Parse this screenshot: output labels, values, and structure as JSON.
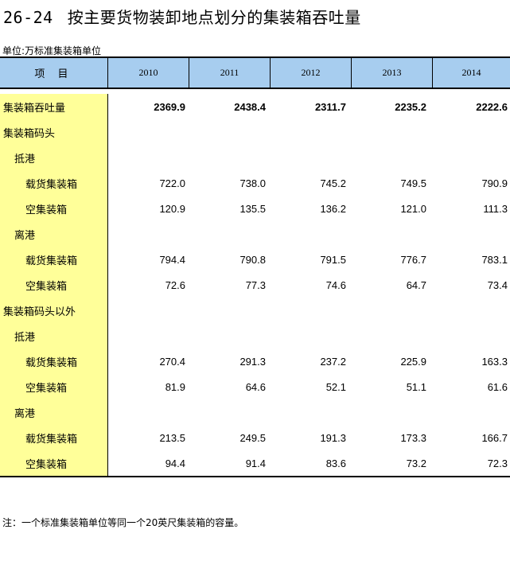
{
  "title": {
    "number": "26-24",
    "text": "按主要货物装卸地点划分的集装箱吞吐量"
  },
  "unit": "单位:万标准集装箱单位",
  "header": {
    "item": "项  目",
    "years": [
      "2010",
      "2011",
      "2012",
      "2013",
      "2014"
    ]
  },
  "rows": [
    {
      "label": "集装箱吞吐量",
      "level": 0,
      "bold": true,
      "values": [
        "2369.9",
        "2438.4",
        "2311.7",
        "2235.2",
        "2222.6"
      ]
    },
    {
      "label": "集装箱码头",
      "level": 0,
      "bold": false,
      "values": [
        "",
        "",
        "",
        "",
        ""
      ]
    },
    {
      "label": "抵港",
      "level": 1,
      "bold": false,
      "values": [
        "",
        "",
        "",
        "",
        ""
      ]
    },
    {
      "label": "载货集装箱",
      "level": 2,
      "bold": false,
      "values": [
        "722.0",
        "738.0",
        "745.2",
        "749.5",
        "790.9"
      ]
    },
    {
      "label": "空集装箱",
      "level": 2,
      "bold": false,
      "values": [
        "120.9",
        "135.5",
        "136.2",
        "121.0",
        "111.3"
      ]
    },
    {
      "label": "离港",
      "level": 1,
      "bold": false,
      "values": [
        "",
        "",
        "",
        "",
        ""
      ]
    },
    {
      "label": "载货集装箱",
      "level": 2,
      "bold": false,
      "values": [
        "794.4",
        "790.8",
        "791.5",
        "776.7",
        "783.1"
      ]
    },
    {
      "label": "空集装箱",
      "level": 2,
      "bold": false,
      "values": [
        "72.6",
        "77.3",
        "74.6",
        "64.7",
        "73.4"
      ]
    },
    {
      "label": "集装箱码头以外",
      "level": 0,
      "bold": false,
      "values": [
        "",
        "",
        "",
        "",
        ""
      ]
    },
    {
      "label": "抵港",
      "level": 1,
      "bold": false,
      "values": [
        "",
        "",
        "",
        "",
        ""
      ]
    },
    {
      "label": "载货集装箱",
      "level": 2,
      "bold": false,
      "values": [
        "270.4",
        "291.3",
        "237.2",
        "225.9",
        "163.3"
      ]
    },
    {
      "label": "空集装箱",
      "level": 2,
      "bold": false,
      "values": [
        "81.9",
        "64.6",
        "52.1",
        "51.1",
        "61.6"
      ]
    },
    {
      "label": "离港",
      "level": 1,
      "bold": false,
      "values": [
        "",
        "",
        "",
        "",
        ""
      ]
    },
    {
      "label": "载货集装箱",
      "level": 2,
      "bold": false,
      "values": [
        "213.5",
        "249.5",
        "191.3",
        "173.3",
        "166.7"
      ]
    },
    {
      "label": "空集装箱",
      "level": 2,
      "bold": false,
      "values": [
        "94.4",
        "91.4",
        "83.6",
        "73.2",
        "72.3"
      ]
    }
  ],
  "note": "注：一个标准集装箱单位等同一个20英尺集装箱的容量。",
  "colors": {
    "header_bg": "#a7cdef",
    "label_col_bg": "#ffff99"
  }
}
